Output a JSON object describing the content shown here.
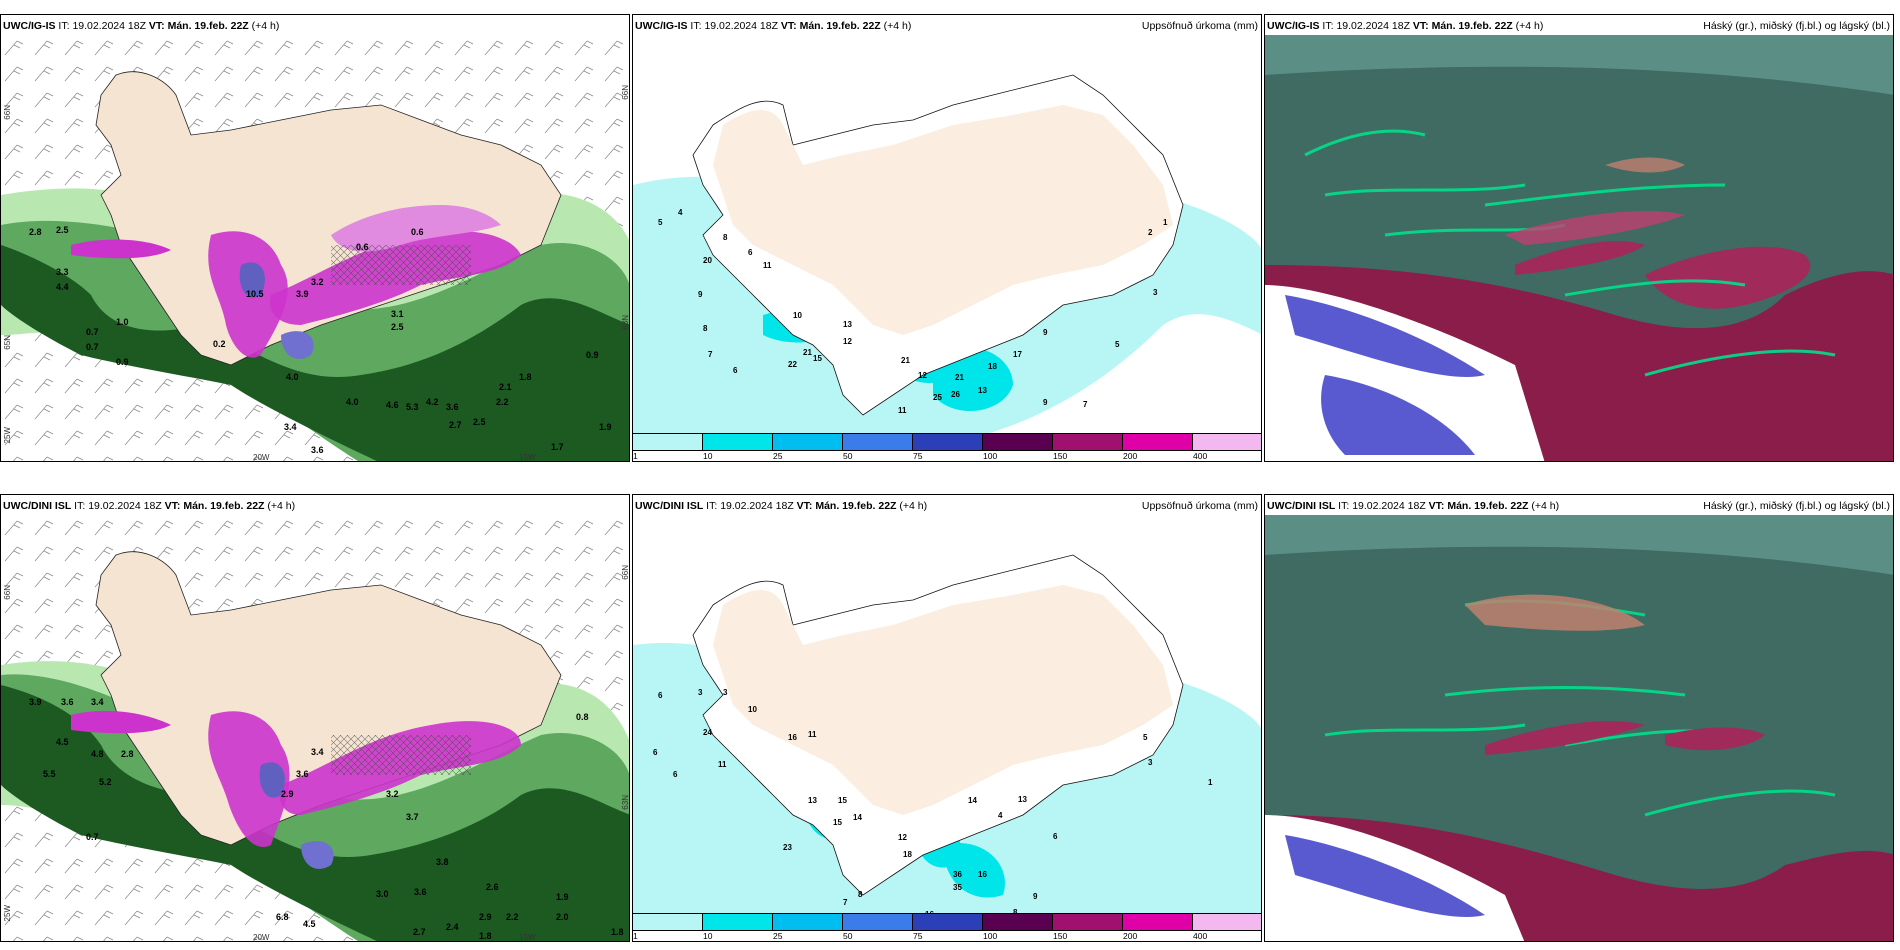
{
  "panels": {
    "p1": {
      "model": "UWC/IG-IS",
      "it_label": "IT:",
      "it": "19.02.2024 18Z",
      "vt_label": "VT:",
      "vt": "Mán. 19.feb. 22Z",
      "lead": "(+4 h)",
      "right_title": ""
    },
    "p2": {
      "model": "UWC/IG-IS",
      "it_label": "IT:",
      "it": "19.02.2024 18Z",
      "vt_label": "VT:",
      "vt": "Mán. 19.feb. 22Z",
      "lead": "(+4 h)",
      "right_title": "Uppsöfnuð úrkoma (mm)"
    },
    "p3": {
      "model": "UWC/IG-IS",
      "it_label": "IT:",
      "it": "19.02.2024 18Z",
      "vt_label": "VT:",
      "vt": "Mán. 19.feb. 22Z",
      "lead": "(+4 h)",
      "right_title": "Háský (gr.), miðský (fj.bl.) og lágský (bl.)"
    },
    "p4": {
      "model": "UWC/DINI ISL",
      "it_label": "IT:",
      "it": "19.02.2024 18Z",
      "vt_label": "VT:",
      "vt": "Mán. 19.feb. 22Z",
      "lead": "(+4 h)",
      "right_title": ""
    },
    "p5": {
      "model": "UWC/DINI ISL",
      "it_label": "IT:",
      "it": "19.02.2024 18Z",
      "vt_label": "VT:",
      "vt": "Mán. 19.feb. 22Z",
      "lead": "(+4 h)",
      "right_title": "Uppsöfnuð úrkoma (mm)"
    },
    "p6": {
      "model": "UWC/DINI ISL",
      "it_label": "IT:",
      "it": "19.02.2024 18Z",
      "vt_label": "VT:",
      "vt": "Mán. 19.feb. 22Z",
      "lead": "(+4 h)",
      "right_title": "Háský (gr.), miðský (fj.bl.) og lágský (bl.)"
    }
  },
  "axis_labels": {
    "lat_66": "66N",
    "lat_65": "65N",
    "lat_63": "63N",
    "lon_20": "20W",
    "lon_15": "15W",
    "lon_25": "25W"
  },
  "colorbar": {
    "levels": [
      "1",
      "10",
      "25",
      "50",
      "75",
      "100",
      "150",
      "200",
      "400"
    ],
    "colors": [
      "#b8f6f6",
      "#00e5ea",
      "#00bff0",
      "#3a7dea",
      "#2a3fb8",
      "#5a0050",
      "#a0106e",
      "#e000a8",
      "#f3b8f0"
    ]
  },
  "precip_values_top": [
    "2.8",
    "2.5",
    "4.4",
    "3.3",
    "1.0",
    "0.7",
    "0.7",
    "0.9",
    "10.5",
    "3.2",
    "3.9",
    "0.6",
    "0.6",
    "3.1",
    "2.5",
    "4.0",
    "4.0",
    "2.1",
    "2.2",
    "1.8",
    "1.9",
    "1.7",
    "3.4",
    "3.6",
    "2.7",
    "4.6",
    "5.3",
    "4.2",
    "3.6",
    "2.5",
    "0.9",
    "0.2"
  ],
  "precip_values_bottom": [
    "3.9",
    "3.6",
    "3.4",
    "4.5",
    "4.8",
    "2.8",
    "5.5",
    "5.2",
    "0.7",
    "3.4",
    "3.6",
    "2.9",
    "3.2",
    "3.7",
    "2.6",
    "2.0",
    "1.9",
    "1.8",
    "2.2",
    "2.9",
    "2.7",
    "3.0",
    "3.6",
    "3.8",
    "6.8",
    "4.5",
    "2.4",
    "1.8",
    "0.8"
  ],
  "accum_values_top": [
    "5",
    "4",
    "20",
    "11",
    "9",
    "8",
    "7",
    "6",
    "22",
    "21",
    "15",
    "13",
    "12",
    "10",
    "21",
    "12",
    "26",
    "25",
    "15",
    "11",
    "13",
    "18",
    "17",
    "21",
    "9",
    "7",
    "5",
    "3",
    "2",
    "1",
    "9",
    "8",
    "6"
  ],
  "accum_values_bottom": [
    "6",
    "3",
    "3",
    "10",
    "24",
    "16",
    "11",
    "11",
    "6",
    "13",
    "15",
    "23",
    "15",
    "14",
    "12",
    "18",
    "16",
    "36",
    "35",
    "16",
    "8",
    "9",
    "2",
    "8",
    "7",
    "6",
    "5",
    "3",
    "1",
    "4",
    "13",
    "14",
    "6"
  ]
}
